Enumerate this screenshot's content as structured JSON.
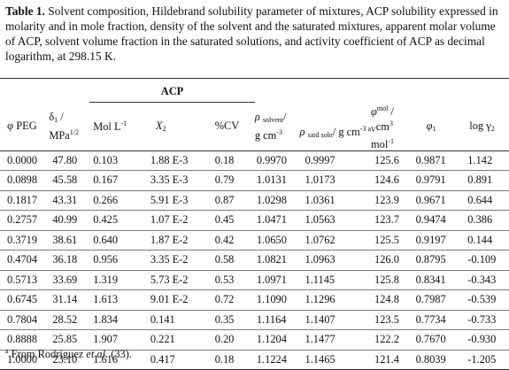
{
  "caption": {
    "label": "Table 1.",
    "text": "Solvent composition, Hildebrand solubility parameter of mixtures, ACP solubility expressed in molarity and in mole fraction, density of the solvent and the saturated mixtures, apparent molar volume of ACP, solvent volume fraction in the saturated solutions, and activity coefficient of ACP as decimal logarithm, at 298.15 K."
  },
  "header": {
    "group": "ACP",
    "phi_peg": "φ PEG",
    "delta_sym": "δ",
    "delta_sub": "1",
    "delta_unit": "MPa",
    "delta_unit_sup": "1/2",
    "mol_l": "Mol L",
    "mol_l_sup": "-1",
    "x2": "X",
    "x2_sub": "2",
    "cv": "%CV",
    "rho_solvent_sym": "ρ",
    "rho_solvent_sub": "solvent",
    "rho_solvent_unit": "g cm",
    "rho_solvent_unit_sup": "-3",
    "rho_satd_sym": "ρ",
    "rho_satd_sub": "satd soln",
    "rho_satd_unit": "g cm",
    "rho_satd_unit_sup": "-3 a",
    "phi_mol_sym": "φ",
    "phi_mol_sup": "mol",
    "phi_mol_sub": "V",
    "phi_mol_unit1": "cm",
    "phi_mol_unit1_sup": "3",
    "phi_mol_unit2": "mol",
    "phi_mol_unit2_sup": "-1",
    "phi1_sym": "φ",
    "phi1_sub": "1",
    "log_gamma": "log γ",
    "log_gamma_sub": "2"
  },
  "rows": [
    [
      "0.0000",
      "47.80",
      "0.103",
      "1.88 E-3",
      "0.18",
      "0.9970",
      "0.9997",
      "125.6",
      "0.9871",
      "1.142"
    ],
    [
      "0.0898",
      "45.58",
      "0.167",
      "3.35 E-3",
      "0.79",
      "1.0131",
      "1.0173",
      "124.6",
      "0.9791",
      "0.891"
    ],
    [
      "0.1817",
      "43.31",
      "0.266",
      "5.91 E-3",
      "0.87",
      "1.0298",
      "1.0361",
      "123.9",
      "0.9671",
      "0.644"
    ],
    [
      "0.2757",
      "40.99",
      "0.425",
      "1.07 E-2",
      "0.45",
      "1.0471",
      "1.0563",
      "123.7",
      "0.9474",
      "0.386"
    ],
    [
      "0.3719",
      "38.61",
      "0.640",
      "1.87 E-2",
      "0.42",
      "1.0650",
      "1.0762",
      "125.5",
      "0.9197",
      "0.144"
    ],
    [
      "0.4704",
      "36.18",
      "0.956",
      "3.35 E-2",
      "0.58",
      "1.0821",
      "1.0963",
      "126.0",
      "0.8795",
      "-0.109"
    ],
    [
      "0.5713",
      "33.69",
      "1.319",
      "5.73 E-2",
      "0.53",
      "1.0971",
      "1.1145",
      "125.8",
      "0.8341",
      "-0.343"
    ],
    [
      "0.6745",
      "31.14",
      "1.613",
      "9.01 E-2",
      "0.72",
      "1.1090",
      "1.1296",
      "124.8",
      "0.7987",
      "-0.539"
    ],
    [
      "0.7804",
      "28.52",
      "1.834",
      "0.141",
      "0.35",
      "1.1164",
      "1.1407",
      "123.5",
      "0.7734",
      "-0.733"
    ],
    [
      "0.8888",
      "25.85",
      "1.907",
      "0.221",
      "0.20",
      "1.1204",
      "1.1477",
      "122.2",
      "0.7670",
      "-0.930"
    ],
    [
      "1.0000",
      "23.10",
      "1.616",
      "0.417",
      "0.18",
      "1.1224",
      "1.1465",
      "121.4",
      "0.8039",
      "-1.205"
    ]
  ],
  "footnote": {
    "mark": "a",
    "text_before": "From Rodríguez ",
    "text_italic": "et al.",
    "text_after": " (33)."
  }
}
